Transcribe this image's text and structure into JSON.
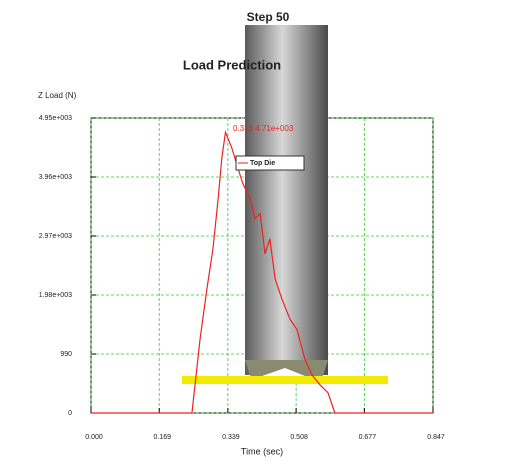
{
  "chart_data": {
    "type": "line",
    "step_label": "Step 50",
    "title": "Load Prediction",
    "y_label": "Z Load (N)",
    "x_label": "Time (sec)",
    "annotation": "0.333  4.71e+003",
    "x": [
      0,
      0.25,
      0.27,
      0.287,
      0.302,
      0.315,
      0.324,
      0.333,
      0.349,
      0.364,
      0.376,
      0.394,
      0.406,
      0.419,
      0.431,
      0.443,
      0.456,
      0.473,
      0.493,
      0.51,
      0.53,
      0.547,
      0.567,
      0.587,
      0.604,
      0.847
    ],
    "series": [
      {
        "name": "Top Die",
        "color": "#ee2222",
        "values": [
          0,
          0,
          1234,
          2079,
          2755,
          3600,
          4276,
          4710,
          4444,
          4107,
          3850,
          3600,
          3262,
          3346,
          2670,
          2924,
          2248,
          1910,
          1572,
          1403,
          896,
          642,
          473,
          338,
          0,
          0
        ]
      }
    ],
    "xlim": [
      0,
      0.847
    ],
    "ylim": [
      0,
      4950
    ],
    "xticks": [
      {
        "value": 0,
        "label": "0.000"
      },
      0.169,
      0.339,
      0.508,
      0.677,
      0.847
    ],
    "yticks": [
      0,
      990,
      {
        "value": 1980,
        "label": "1.98e+003"
      },
      {
        "value": 2970,
        "label": "2.97e+003"
      },
      {
        "value": 3960,
        "label": "3.96e+003"
      },
      {
        "value": 4950,
        "label": "4.95e+003"
      }
    ],
    "grid": true,
    "grid_color": "#33cc33"
  }
}
